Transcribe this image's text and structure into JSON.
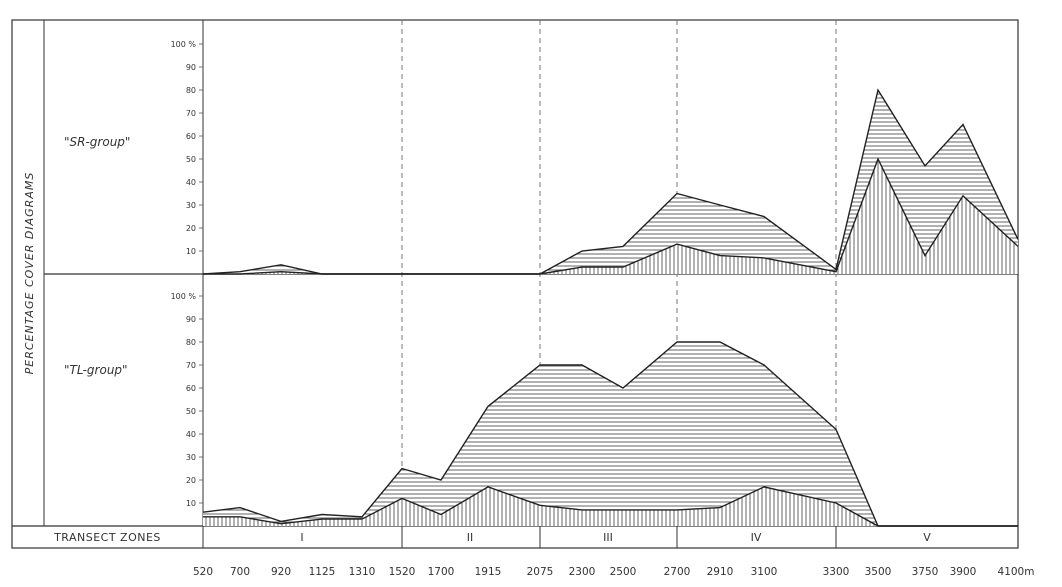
{
  "chart_data": {
    "type": "area",
    "ylabel": "PERCENTAGE COVER DIAGRAMS",
    "zone_row_label": "TRANSECT ZONES",
    "x_unit": "m",
    "x_ticks": [
      "520",
      "700",
      "920",
      "1125",
      "1310",
      "1520",
      "1700",
      "1915",
      "2075",
      "2300",
      "2500",
      "2700",
      "2910",
      "3100",
      "3300",
      "3500",
      "3750",
      "3900",
      "4100"
    ],
    "y_ticks": [
      "10",
      "20",
      "30",
      "40",
      "50",
      "60",
      "70",
      "80",
      "90",
      "100 %"
    ],
    "ylim": [
      0,
      100
    ],
    "zones": [
      {
        "label": "I",
        "from": "520",
        "to": "1520"
      },
      {
        "label": "II",
        "from": "1520",
        "to": "2075"
      },
      {
        "label": "III",
        "from": "2075",
        "to": "2700"
      },
      {
        "label": "IV",
        "from": "2700",
        "to": "3300"
      },
      {
        "label": "V",
        "from": "3300",
        "to": "4100"
      }
    ],
    "panels": [
      {
        "label": "\"SR-group\"",
        "lower": [
          0,
          0,
          1,
          0,
          0,
          0,
          0,
          0,
          0,
          3,
          3,
          13,
          8,
          7,
          1,
          50,
          8,
          34,
          12
        ],
        "upper": [
          0,
          1,
          4,
          0,
          0,
          0,
          0,
          0,
          0,
          10,
          12,
          35,
          30,
          25,
          2,
          80,
          47,
          65,
          15
        ]
      },
      {
        "label": "\"TL-group\"",
        "lower": [
          4,
          4,
          1,
          3,
          3,
          12,
          5,
          17,
          9,
          7,
          7,
          7,
          8,
          17,
          10,
          0,
          0,
          0,
          0
        ],
        "upper": [
          6,
          8,
          2,
          5,
          4,
          25,
          20,
          52,
          70,
          70,
          60,
          80,
          80,
          70,
          42,
          0,
          0,
          0,
          0
        ]
      }
    ]
  },
  "colors": {
    "axis": "#333333",
    "hatch": "#555555",
    "grid": "#aaaaaa",
    "dashed": "#777777"
  }
}
